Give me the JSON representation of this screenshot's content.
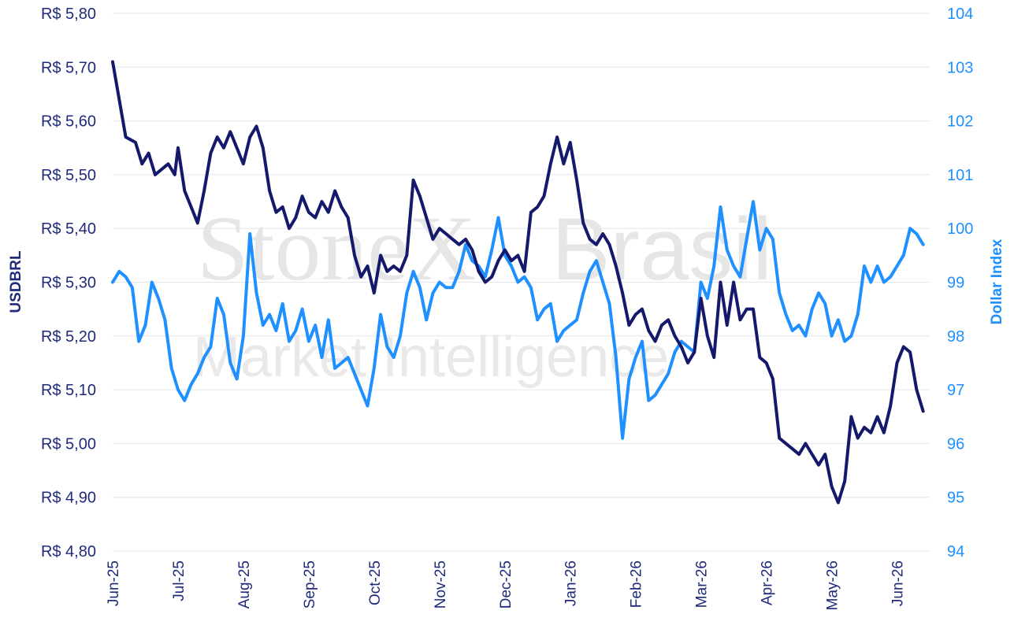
{
  "watermark": {
    "brand": "StoneX",
    "region": "Brasil",
    "tagline": "Market Intelligence"
  },
  "chart_data": {
    "type": "line",
    "x_labels": [
      "Jun-25",
      "Jul-25",
      "Aug-25",
      "Sep-25",
      "Oct-25",
      "Nov-25",
      "Dec-25",
      "Jan-26",
      "Feb-26",
      "Mar-26",
      "Apr-26",
      "May-26",
      "Jun-26"
    ],
    "x_range": [
      0,
      12.5
    ],
    "left_axis": {
      "label": "USDBRL",
      "ylim": [
        4.8,
        5.8
      ],
      "ticks": [
        "R$ 4,80",
        "R$ 4,90",
        "R$ 5,00",
        "R$ 5,10",
        "R$ 5,20",
        "R$ 5,30",
        "R$ 5,40",
        "R$ 5,50",
        "R$ 5,60",
        "R$ 5,70",
        "R$ 5,80"
      ],
      "tick_values": [
        4.8,
        4.9,
        5.0,
        5.1,
        5.2,
        5.3,
        5.4,
        5.5,
        5.6,
        5.7,
        5.8
      ]
    },
    "right_axis": {
      "label": "Dollar Index",
      "ylim": [
        94,
        104
      ],
      "ticks": [
        "94",
        "95",
        "96",
        "97",
        "98",
        "99",
        "100",
        "101",
        "102",
        "103",
        "104"
      ],
      "tick_values": [
        94,
        95,
        96,
        97,
        98,
        99,
        100,
        101,
        102,
        103,
        104
      ]
    },
    "grid": true,
    "series": [
      {
        "name": "USDBRL",
        "axis": "left",
        "color": "#15196b",
        "points": [
          [
            0,
            5.71
          ],
          [
            0.1,
            5.64
          ],
          [
            0.2,
            5.57
          ],
          [
            0.35,
            5.56
          ],
          [
            0.45,
            5.52
          ],
          [
            0.55,
            5.54
          ],
          [
            0.65,
            5.5
          ],
          [
            0.75,
            5.51
          ],
          [
            0.85,
            5.52
          ],
          [
            0.95,
            5.5
          ],
          [
            1.0,
            5.55
          ],
          [
            1.1,
            5.47
          ],
          [
            1.2,
            5.44
          ],
          [
            1.3,
            5.41
          ],
          [
            1.4,
            5.47
          ],
          [
            1.5,
            5.54
          ],
          [
            1.6,
            5.57
          ],
          [
            1.7,
            5.55
          ],
          [
            1.8,
            5.58
          ],
          [
            1.9,
            5.55
          ],
          [
            2.0,
            5.52
          ],
          [
            2.1,
            5.57
          ],
          [
            2.2,
            5.59
          ],
          [
            2.3,
            5.55
          ],
          [
            2.4,
            5.47
          ],
          [
            2.5,
            5.43
          ],
          [
            2.6,
            5.44
          ],
          [
            2.7,
            5.4
          ],
          [
            2.8,
            5.42
          ],
          [
            2.9,
            5.46
          ],
          [
            3.0,
            5.43
          ],
          [
            3.1,
            5.42
          ],
          [
            3.2,
            5.45
          ],
          [
            3.3,
            5.43
          ],
          [
            3.4,
            5.47
          ],
          [
            3.5,
            5.44
          ],
          [
            3.6,
            5.42
          ],
          [
            3.7,
            5.35
          ],
          [
            3.8,
            5.31
          ],
          [
            3.9,
            5.33
          ],
          [
            4.0,
            5.28
          ],
          [
            4.1,
            5.35
          ],
          [
            4.2,
            5.32
          ],
          [
            4.3,
            5.33
          ],
          [
            4.4,
            5.32
          ],
          [
            4.5,
            5.35
          ],
          [
            4.6,
            5.49
          ],
          [
            4.7,
            5.46
          ],
          [
            4.8,
            5.42
          ],
          [
            4.9,
            5.38
          ],
          [
            5.0,
            5.4
          ],
          [
            5.1,
            5.39
          ],
          [
            5.2,
            5.38
          ],
          [
            5.3,
            5.37
          ],
          [
            5.4,
            5.38
          ],
          [
            5.5,
            5.36
          ],
          [
            5.6,
            5.32
          ],
          [
            5.7,
            5.3
          ],
          [
            5.8,
            5.31
          ],
          [
            5.9,
            5.34
          ],
          [
            6.0,
            5.36
          ],
          [
            6.1,
            5.34
          ],
          [
            6.2,
            5.35
          ],
          [
            6.3,
            5.32
          ],
          [
            6.4,
            5.43
          ],
          [
            6.5,
            5.44
          ],
          [
            6.6,
            5.46
          ],
          [
            6.7,
            5.52
          ],
          [
            6.8,
            5.57
          ],
          [
            6.9,
            5.52
          ],
          [
            7.0,
            5.56
          ],
          [
            7.1,
            5.49
          ],
          [
            7.2,
            5.41
          ],
          [
            7.3,
            5.38
          ],
          [
            7.4,
            5.37
          ],
          [
            7.5,
            5.39
          ],
          [
            7.6,
            5.37
          ],
          [
            7.7,
            5.33
          ],
          [
            7.8,
            5.28
          ],
          [
            7.9,
            5.22
          ],
          [
            8.0,
            5.24
          ],
          [
            8.1,
            5.25
          ],
          [
            8.2,
            5.21
          ],
          [
            8.3,
            5.19
          ],
          [
            8.4,
            5.22
          ],
          [
            8.5,
            5.23
          ],
          [
            8.6,
            5.2
          ],
          [
            8.7,
            5.18
          ],
          [
            8.8,
            5.15
          ],
          [
            8.9,
            5.17
          ],
          [
            9.0,
            5.27
          ],
          [
            9.1,
            5.2
          ],
          [
            9.2,
            5.16
          ],
          [
            9.3,
            5.3
          ],
          [
            9.4,
            5.22
          ],
          [
            9.5,
            5.3
          ],
          [
            9.6,
            5.23
          ],
          [
            9.7,
            5.25
          ],
          [
            9.8,
            5.25
          ],
          [
            9.9,
            5.16
          ],
          [
            10.0,
            5.15
          ],
          [
            10.1,
            5.12
          ],
          [
            10.2,
            5.01
          ],
          [
            10.3,
            5.0
          ],
          [
            10.4,
            4.99
          ],
          [
            10.5,
            4.98
          ],
          [
            10.6,
            5.0
          ],
          [
            10.7,
            4.98
          ],
          [
            10.8,
            4.96
          ],
          [
            10.9,
            4.98
          ],
          [
            11.0,
            4.92
          ],
          [
            11.1,
            4.89
          ],
          [
            11.2,
            4.93
          ],
          [
            11.3,
            5.05
          ],
          [
            11.4,
            5.01
          ],
          [
            11.5,
            5.03
          ],
          [
            11.6,
            5.02
          ],
          [
            11.7,
            5.05
          ],
          [
            11.8,
            5.02
          ],
          [
            11.9,
            5.07
          ],
          [
            12.0,
            5.15
          ],
          [
            12.1,
            5.18
          ],
          [
            12.2,
            5.17
          ],
          [
            12.3,
            5.1
          ],
          [
            12.4,
            5.06
          ]
        ]
      },
      {
        "name": "Dollar Index",
        "axis": "right",
        "color": "#1e90ff",
        "points": [
          [
            0,
            99.0
          ],
          [
            0.1,
            99.2
          ],
          [
            0.2,
            99.1
          ],
          [
            0.3,
            98.9
          ],
          [
            0.4,
            97.9
          ],
          [
            0.5,
            98.2
          ],
          [
            0.6,
            99.0
          ],
          [
            0.7,
            98.7
          ],
          [
            0.8,
            98.3
          ],
          [
            0.9,
            97.4
          ],
          [
            1.0,
            97.0
          ],
          [
            1.1,
            96.8
          ],
          [
            1.2,
            97.1
          ],
          [
            1.3,
            97.3
          ],
          [
            1.4,
            97.6
          ],
          [
            1.5,
            97.8
          ],
          [
            1.6,
            98.7
          ],
          [
            1.7,
            98.4
          ],
          [
            1.8,
            97.5
          ],
          [
            1.9,
            97.2
          ],
          [
            2.0,
            98.0
          ],
          [
            2.1,
            99.9
          ],
          [
            2.2,
            98.8
          ],
          [
            2.3,
            98.2
          ],
          [
            2.4,
            98.4
          ],
          [
            2.5,
            98.1
          ],
          [
            2.6,
            98.6
          ],
          [
            2.7,
            97.9
          ],
          [
            2.8,
            98.1
          ],
          [
            2.9,
            98.5
          ],
          [
            3.0,
            97.9
          ],
          [
            3.1,
            98.2
          ],
          [
            3.2,
            97.6
          ],
          [
            3.3,
            98.3
          ],
          [
            3.4,
            97.4
          ],
          [
            3.5,
            97.5
          ],
          [
            3.6,
            97.6
          ],
          [
            3.7,
            97.3
          ],
          [
            3.8,
            97.0
          ],
          [
            3.9,
            96.7
          ],
          [
            4.0,
            97.4
          ],
          [
            4.1,
            98.4
          ],
          [
            4.2,
            97.8
          ],
          [
            4.3,
            97.6
          ],
          [
            4.4,
            98.0
          ],
          [
            4.5,
            98.8
          ],
          [
            4.6,
            99.2
          ],
          [
            4.7,
            98.9
          ],
          [
            4.8,
            98.3
          ],
          [
            4.9,
            98.8
          ],
          [
            5.0,
            99.0
          ],
          [
            5.1,
            98.9
          ],
          [
            5.2,
            98.9
          ],
          [
            5.3,
            99.2
          ],
          [
            5.4,
            99.7
          ],
          [
            5.5,
            99.4
          ],
          [
            5.6,
            99.3
          ],
          [
            5.7,
            99.1
          ],
          [
            5.8,
            99.6
          ],
          [
            5.9,
            100.2
          ],
          [
            6.0,
            99.5
          ],
          [
            6.1,
            99.3
          ],
          [
            6.2,
            99.0
          ],
          [
            6.3,
            99.1
          ],
          [
            6.4,
            98.9
          ],
          [
            6.5,
            98.3
          ],
          [
            6.6,
            98.5
          ],
          [
            6.7,
            98.6
          ],
          [
            6.8,
            97.9
          ],
          [
            6.9,
            98.1
          ],
          [
            7.0,
            98.2
          ],
          [
            7.1,
            98.3
          ],
          [
            7.2,
            98.8
          ],
          [
            7.3,
            99.2
          ],
          [
            7.4,
            99.4
          ],
          [
            7.5,
            99.0
          ],
          [
            7.6,
            98.6
          ],
          [
            7.7,
            97.6
          ],
          [
            7.8,
            96.1
          ],
          [
            7.9,
            97.2
          ],
          [
            8.0,
            97.6
          ],
          [
            8.1,
            97.9
          ],
          [
            8.2,
            96.8
          ],
          [
            8.3,
            96.9
          ],
          [
            8.4,
            97.1
          ],
          [
            8.5,
            97.3
          ],
          [
            8.6,
            97.7
          ],
          [
            8.7,
            97.9
          ],
          [
            8.8,
            97.8
          ],
          [
            8.9,
            97.7
          ],
          [
            9.0,
            99.0
          ],
          [
            9.1,
            98.7
          ],
          [
            9.2,
            99.3
          ],
          [
            9.3,
            100.4
          ],
          [
            9.4,
            99.6
          ],
          [
            9.5,
            99.3
          ],
          [
            9.6,
            99.1
          ],
          [
            9.7,
            99.8
          ],
          [
            9.8,
            100.5
          ],
          [
            9.9,
            99.6
          ],
          [
            10.0,
            100.0
          ],
          [
            10.1,
            99.8
          ],
          [
            10.2,
            98.8
          ],
          [
            10.3,
            98.4
          ],
          [
            10.4,
            98.1
          ],
          [
            10.5,
            98.2
          ],
          [
            10.6,
            98.0
          ],
          [
            10.7,
            98.5
          ],
          [
            10.8,
            98.8
          ],
          [
            10.9,
            98.6
          ],
          [
            11.0,
            98.0
          ],
          [
            11.1,
            98.3
          ],
          [
            11.2,
            97.9
          ],
          [
            11.3,
            98.0
          ],
          [
            11.4,
            98.4
          ],
          [
            11.5,
            99.3
          ],
          [
            11.6,
            99.0
          ],
          [
            11.7,
            99.3
          ],
          [
            11.8,
            99.0
          ],
          [
            11.9,
            99.1
          ],
          [
            12.0,
            99.3
          ],
          [
            12.1,
            99.5
          ],
          [
            12.2,
            100.0
          ],
          [
            12.3,
            99.9
          ],
          [
            12.4,
            99.7
          ]
        ]
      }
    ]
  }
}
